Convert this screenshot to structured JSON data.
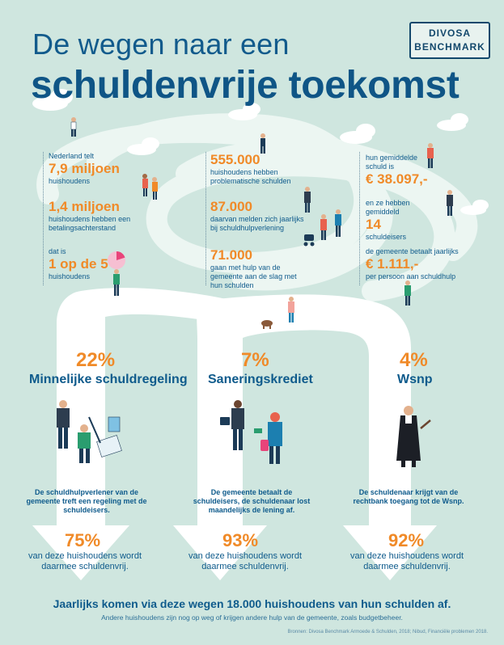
{
  "logo": {
    "line1": "DIVOSA",
    "line2": "BENCHMARK"
  },
  "title": {
    "line1": "De wegen naar een",
    "line2": "schuldenvrije toekomst"
  },
  "stats": {
    "col1": [
      {
        "pre": "Nederland telt",
        "big": "7,9 miljoen",
        "post": "huishoudens"
      },
      {
        "pre": "",
        "big": "1,4 miljoen",
        "post": "huishoudens hebben een betalingsachterstand"
      },
      {
        "pre": "dat is",
        "big": "1 op de 5",
        "post": "huishoudens"
      }
    ],
    "col2": [
      {
        "pre": "",
        "big": "555.000",
        "post": "huishoudens hebben problematische schulden"
      },
      {
        "pre": "",
        "big": "87.000",
        "post": "daarvan melden zich jaarlijks bij schuldhulpverlening"
      },
      {
        "pre": "",
        "big": "71.000",
        "post": "gaan met hulp van de gemeente aan de slag met hun schulden"
      }
    ],
    "col3": [
      {
        "pre": "hun gemiddelde schuld is",
        "big": "€ 38.097,-",
        "post": ""
      },
      {
        "pre": "en ze hebben gemiddeld",
        "big": "14",
        "post": "schuldeisers"
      },
      {
        "pre": "de gemeente betaalt jaarlijks",
        "big": "€ 1.111,-",
        "post": "per persoon aan schuldhulp"
      }
    ]
  },
  "routes": [
    {
      "pct": "22%",
      "name": "Minnelijke schuldregeling",
      "desc": "De schuldhulpverlener van de gemeente treft een regeling met de schuldeisers.",
      "result_pct": "75%",
      "result_text": "van deze huishoudens wordt daarmee schuldenvrij."
    },
    {
      "pct": "7%",
      "name": "Saneringskrediet",
      "desc": "De gemeente betaalt de schuldeisers, de schuldenaar lost maandelijks de lening af.",
      "result_pct": "93%",
      "result_text": "van deze huishoudens wordt daarmee schuldenvrij."
    },
    {
      "pct": "4%",
      "name": "Wsnp",
      "desc": "De schuldenaar krijgt van de rechtbank toegang tot de Wsnp.",
      "result_pct": "92%",
      "result_text": "van deze huishoudens wordt daarmee schuldenvrij."
    }
  ],
  "footer": {
    "main": "Jaarlijks komen via deze wegen 18.000 huishoudens van hun schulden af.",
    "sub": "Andere huishoudens zijn nog op weg of krijgen andere hulp van de gemeente, zoals budgetbeheer.",
    "source": "Bronnen: Divosa Benchmark Armoede & Schulden, 2018; Nibud, Financiële problemen 2018."
  },
  "colors": {
    "background": "#cfe6df",
    "road": "#ffffff",
    "accent": "#f08a28",
    "text": "#0f5b8c"
  }
}
